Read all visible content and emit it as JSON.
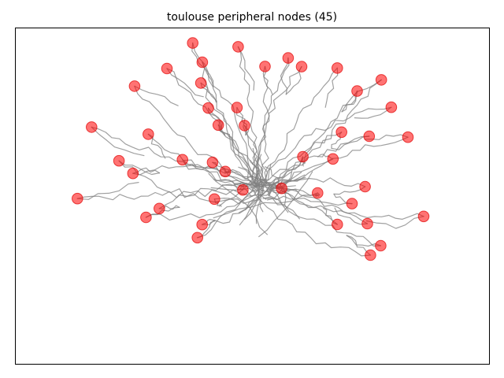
{
  "chart_data": {
    "type": "scatter",
    "title": "toulouse peripheral nodes (45)",
    "xlabel": "",
    "ylabel": "",
    "axes_visible": false,
    "grid": false,
    "legend": false,
    "colors": {
      "node": "#ff0000",
      "edge": "#808080",
      "frame": "#000000"
    },
    "node_count": 45,
    "hub": [
      0.0,
      0.0
    ],
    "xlim": [
      -1.0,
      1.0
    ],
    "ylim": [
      -1.0,
      1.0
    ],
    "points": [
      [
        -0.328,
        0.937
      ],
      [
        -0.106,
        0.913
      ],
      [
        0.138,
        0.842
      ],
      [
        0.025,
        0.788
      ],
      [
        -0.281,
        0.815
      ],
      [
        -0.454,
        0.775
      ],
      [
        0.204,
        0.787
      ],
      [
        0.378,
        0.778
      ],
      [
        0.593,
        0.703
      ],
      [
        -0.612,
        0.663
      ],
      [
        -0.288,
        0.683
      ],
      [
        0.475,
        0.632
      ],
      [
        0.642,
        0.529
      ],
      [
        -0.112,
        0.527
      ],
      [
        -0.252,
        0.524
      ],
      [
        -0.203,
        0.416
      ],
      [
        -0.822,
        0.403
      ],
      [
        -0.545,
        0.358
      ],
      [
        -0.075,
        0.413
      ],
      [
        0.399,
        0.371
      ],
      [
        0.534,
        0.345
      ],
      [
        0.723,
        0.339
      ],
      [
        -0.688,
        0.189
      ],
      [
        -0.378,
        0.196
      ],
      [
        -0.231,
        0.179
      ],
      [
        0.357,
        0.201
      ],
      [
        0.21,
        0.215
      ],
      [
        -0.62,
        0.109
      ],
      [
        -0.169,
        0.121
      ],
      [
        -0.891,
        -0.051
      ],
      [
        0.514,
        0.025
      ],
      [
        -0.083,
        0.004
      ],
      [
        -0.222,
        -0.054
      ],
      [
        -0.491,
        -0.114
      ],
      [
        0.106,
        0.014
      ],
      [
        0.282,
        -0.015
      ],
      [
        0.45,
        -0.083
      ],
      [
        -0.556,
        -0.17
      ],
      [
        0.378,
        -0.215
      ],
      [
        -0.282,
        -0.216
      ],
      [
        0.525,
        -0.21
      ],
      [
        -0.305,
        -0.299
      ],
      [
        0.8,
        -0.164
      ],
      [
        0.59,
        -0.35
      ],
      [
        0.54,
        -0.41
      ]
    ]
  }
}
